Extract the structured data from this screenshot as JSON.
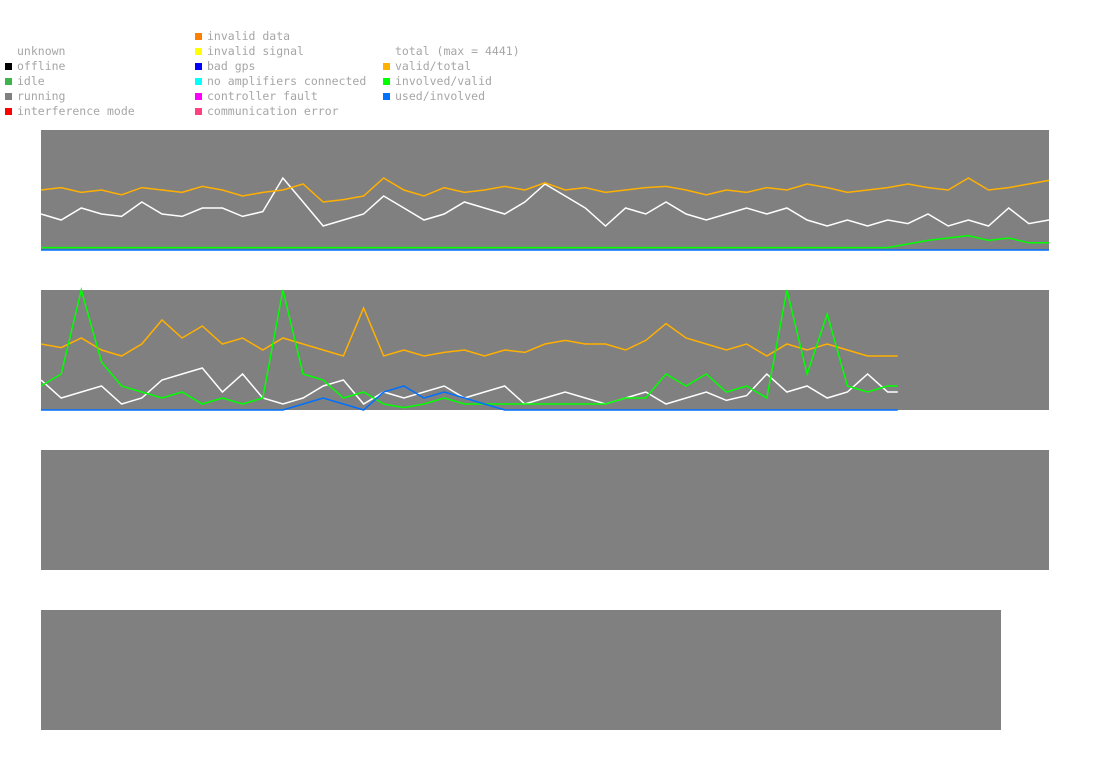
{
  "legend": {
    "status": [
      {
        "label": "unknown",
        "color": null
      },
      {
        "label": "offline",
        "color": "#000000"
      },
      {
        "label": "idle",
        "color": "#3cb44b"
      },
      {
        "label": "running",
        "color": "#808080"
      },
      {
        "label": "interference mode",
        "color": "#ff0000"
      }
    ],
    "errors": [
      {
        "label": "invalid data",
        "color": "#ff7f00"
      },
      {
        "label": "invalid signal",
        "color": "#ffff00"
      },
      {
        "label": "bad gps",
        "color": "#0000ff"
      },
      {
        "label": "no amplifiers connected",
        "color": "#00ffff"
      },
      {
        "label": "controller fault",
        "color": "#ff00ff"
      },
      {
        "label": "communication error",
        "color": "#ff3f7f"
      }
    ],
    "metrics": [
      {
        "label": "total (max = 4441)",
        "color": null
      },
      {
        "label": "valid/total",
        "color": "#ffb000"
      },
      {
        "label": "involved/valid",
        "color": "#00ff00"
      },
      {
        "label": "used/involved",
        "color": "#0070ff"
      }
    ]
  },
  "colors": {
    "panel_bg": "#808080",
    "total": "#ffffff",
    "valid_total": "#ffb000",
    "involved_valid": "#00ff00",
    "used_involved": "#0070ff"
  },
  "chart_data": [
    {
      "type": "line",
      "ylim": [
        0,
        1
      ],
      "x": [
        0,
        2,
        4,
        6,
        8,
        10,
        12,
        14,
        16,
        18,
        20,
        22,
        24,
        26,
        28,
        30,
        32,
        34,
        36,
        38,
        40,
        42,
        44,
        46,
        48,
        50,
        52,
        54,
        56,
        58,
        60,
        62,
        64,
        66,
        68,
        70,
        72,
        74,
        76,
        78,
        80,
        82,
        84,
        86,
        88,
        90,
        92,
        94,
        96,
        98,
        100
      ],
      "series": [
        {
          "name": "total",
          "color": "#ffffff",
          "values": [
            0.3,
            0.25,
            0.35,
            0.3,
            0.28,
            0.4,
            0.3,
            0.28,
            0.35,
            0.35,
            0.28,
            0.32,
            0.6,
            0.4,
            0.2,
            0.25,
            0.3,
            0.45,
            0.35,
            0.25,
            0.3,
            0.4,
            0.35,
            0.3,
            0.4,
            0.55,
            0.45,
            0.35,
            0.2,
            0.35,
            0.3,
            0.4,
            0.3,
            0.25,
            0.3,
            0.35,
            0.3,
            0.35,
            0.25,
            0.2,
            0.25,
            0.2,
            0.25,
            0.22,
            0.3,
            0.2,
            0.25,
            0.2,
            0.35,
            0.22,
            0.25
          ]
        },
        {
          "name": "valid/total",
          "color": "#ffb000",
          "values": [
            0.5,
            0.52,
            0.48,
            0.5,
            0.46,
            0.52,
            0.5,
            0.48,
            0.53,
            0.5,
            0.45,
            0.48,
            0.5,
            0.55,
            0.4,
            0.42,
            0.45,
            0.6,
            0.5,
            0.45,
            0.52,
            0.48,
            0.5,
            0.53,
            0.5,
            0.56,
            0.5,
            0.52,
            0.48,
            0.5,
            0.52,
            0.53,
            0.5,
            0.46,
            0.5,
            0.48,
            0.52,
            0.5,
            0.55,
            0.52,
            0.48,
            0.5,
            0.52,
            0.55,
            0.52,
            0.5,
            0.6,
            0.5,
            0.52,
            0.55,
            0.58
          ]
        },
        {
          "name": "involved/valid",
          "color": "#00ff00",
          "values": [
            0.02,
            0.02,
            0.02,
            0.02,
            0.02,
            0.02,
            0.02,
            0.02,
            0.02,
            0.02,
            0.02,
            0.02,
            0.02,
            0.02,
            0.02,
            0.02,
            0.02,
            0.02,
            0.02,
            0.02,
            0.02,
            0.02,
            0.02,
            0.02,
            0.02,
            0.02,
            0.02,
            0.02,
            0.02,
            0.02,
            0.02,
            0.02,
            0.02,
            0.02,
            0.02,
            0.02,
            0.02,
            0.02,
            0.02,
            0.02,
            0.02,
            0.02,
            0.02,
            0.05,
            0.08,
            0.1,
            0.12,
            0.08,
            0.1,
            0.06,
            0.06
          ]
        },
        {
          "name": "used/involved",
          "color": "#0070ff",
          "values": [
            0,
            0,
            0,
            0,
            0,
            0,
            0,
            0,
            0,
            0,
            0,
            0,
            0,
            0,
            0,
            0,
            0,
            0,
            0,
            0,
            0,
            0,
            0,
            0,
            0,
            0,
            0,
            0,
            0,
            0,
            0,
            0,
            0,
            0,
            0,
            0,
            0,
            0,
            0,
            0,
            0,
            0,
            0,
            0,
            0,
            0,
            0,
            0,
            0,
            0,
            0
          ]
        }
      ]
    },
    {
      "type": "line",
      "ylim": [
        0,
        1
      ],
      "x": [
        0,
        2,
        4,
        6,
        8,
        10,
        12,
        14,
        16,
        18,
        20,
        22,
        24,
        26,
        28,
        30,
        32,
        34,
        36,
        38,
        40,
        42,
        44,
        46,
        48,
        50,
        52,
        54,
        56,
        58,
        60,
        62,
        64,
        66,
        68,
        70,
        72,
        74,
        76,
        78,
        80,
        82,
        84,
        85
      ],
      "series": [
        {
          "name": "total",
          "color": "#ffffff",
          "values": [
            0.25,
            0.1,
            0.15,
            0.2,
            0.05,
            0.1,
            0.25,
            0.3,
            0.35,
            0.15,
            0.3,
            0.1,
            0.05,
            0.1,
            0.2,
            0.25,
            0.05,
            0.15,
            0.1,
            0.15,
            0.2,
            0.1,
            0.15,
            0.2,
            0.05,
            0.1,
            0.15,
            0.1,
            0.05,
            0.1,
            0.15,
            0.05,
            0.1,
            0.15,
            0.08,
            0.12,
            0.3,
            0.15,
            0.2,
            0.1,
            0.15,
            0.3,
            0.15,
            0.15
          ]
        },
        {
          "name": "valid/total",
          "color": "#ffb000",
          "values": [
            0.55,
            0.52,
            0.6,
            0.5,
            0.45,
            0.55,
            0.75,
            0.6,
            0.7,
            0.55,
            0.6,
            0.5,
            0.6,
            0.55,
            0.5,
            0.45,
            0.85,
            0.45,
            0.5,
            0.45,
            0.48,
            0.5,
            0.45,
            0.5,
            0.48,
            0.55,
            0.58,
            0.55,
            0.55,
            0.5,
            0.58,
            0.72,
            0.6,
            0.55,
            0.5,
            0.55,
            0.45,
            0.55,
            0.5,
            0.55,
            0.5,
            0.45,
            0.45,
            0.45
          ]
        },
        {
          "name": "involved/valid",
          "color": "#00ff00",
          "values": [
            0.2,
            0.3,
            1.0,
            0.4,
            0.2,
            0.15,
            0.1,
            0.15,
            0.05,
            0.1,
            0.05,
            0.1,
            1.0,
            0.3,
            0.25,
            0.1,
            0.15,
            0.05,
            0.02,
            0.05,
            0.1,
            0.05,
            0.05,
            0.05,
            0.05,
            0.05,
            0.05,
            0.05,
            0.05,
            0.1,
            0.1,
            0.3,
            0.2,
            0.3,
            0.15,
            0.2,
            0.1,
            1.0,
            0.3,
            0.8,
            0.2,
            0.15,
            0.2,
            0.2
          ]
        },
        {
          "name": "used/involved",
          "color": "#0070ff",
          "values": [
            0,
            0,
            0,
            0,
            0,
            0,
            0,
            0,
            0,
            0,
            0,
            0,
            0,
            0.05,
            0.1,
            0.05,
            0,
            0.15,
            0.2,
            0.1,
            0.15,
            0.1,
            0.05,
            0,
            0,
            0,
            0,
            0,
            0,
            0,
            0,
            0,
            0,
            0,
            0,
            0,
            0,
            0,
            0,
            0,
            0,
            0,
            0,
            0
          ]
        }
      ]
    },
    {
      "type": "line",
      "ylim": [
        0,
        1
      ],
      "x": [],
      "series": []
    },
    {
      "type": "line",
      "ylim": [
        0,
        1
      ],
      "x": [],
      "series": []
    }
  ]
}
